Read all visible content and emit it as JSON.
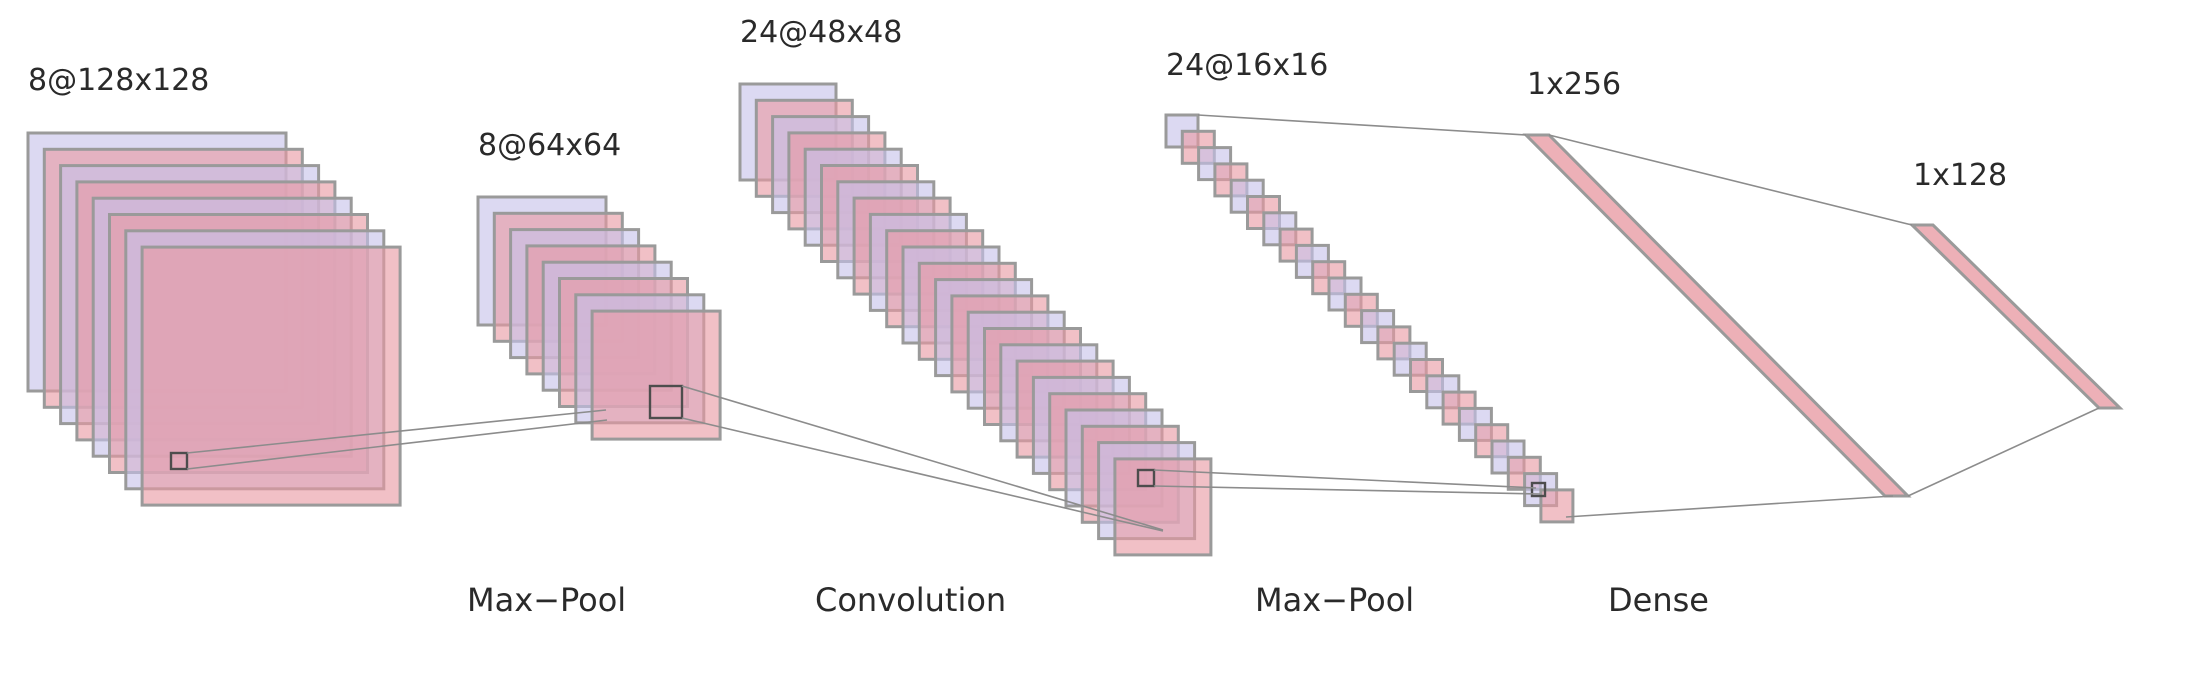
{
  "diagram": {
    "colors": {
      "purple_map": "#c7c2ea",
      "pink_map": "#e89aa3",
      "map_border": "#9a9a9a",
      "connector": "#8c8c8c",
      "kernel": "#4d4d4d",
      "text": "#2a2a2a",
      "background": "#ffffff"
    },
    "layers": [
      {
        "id": "input",
        "label": "8@128x128",
        "channels": 8
      },
      {
        "id": "pool1",
        "label": "8@64x64",
        "channels": 8
      },
      {
        "id": "conv",
        "label": "24@48x48",
        "channels": 24
      },
      {
        "id": "pool2",
        "label": "24@16x16",
        "channels": 24
      },
      {
        "id": "dense1",
        "label": "1x256"
      },
      {
        "id": "dense2",
        "label": "1x128"
      }
    ],
    "operations": [
      {
        "id": "op1",
        "label": "Max−Pool"
      },
      {
        "id": "op2",
        "label": "Convolution"
      },
      {
        "id": "op3",
        "label": "Max−Pool"
      },
      {
        "id": "op4",
        "label": "Dense"
      }
    ]
  }
}
